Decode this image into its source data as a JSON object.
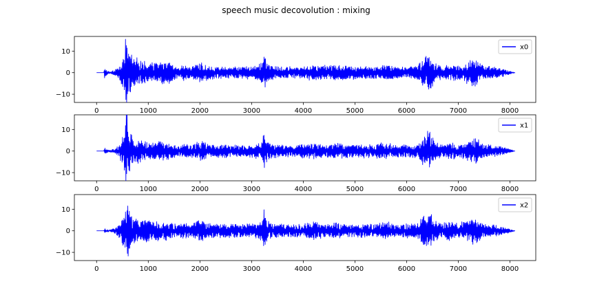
{
  "figure": {
    "title": "speech music decovolution : mixing",
    "line_color": "#0000ff",
    "legend_placement": "upper right"
  },
  "chart_data": [
    {
      "type": "line",
      "title": "",
      "xlabel": "",
      "ylabel": "",
      "xlim": [
        -430,
        8500
      ],
      "ylim": [
        -13.8,
        16.8
      ],
      "xticks": [
        0,
        1000,
        2000,
        3000,
        4000,
        5000,
        6000,
        7000,
        8000
      ],
      "yticks": [
        -10,
        0,
        10
      ],
      "xtick_labels": [
        "0",
        "1000",
        "2000",
        "3000",
        "4000",
        "5000",
        "6000",
        "7000",
        "8000"
      ],
      "ytick_labels": [
        "−10",
        "0",
        "10"
      ],
      "grid": false,
      "legend": "upper right",
      "series": [
        {
          "name": "x0",
          "color": "#0000ff",
          "x_range": [
            0,
            8100
          ],
          "envelope": [
            [
              0,
              0
            ],
            [
              140,
              0
            ],
            [
              150,
              2.5
            ],
            [
              200,
              1.0
            ],
            [
              260,
              0.4
            ],
            [
              380,
              1.5
            ],
            [
              460,
              4
            ],
            [
              520,
              7
            ],
            [
              560,
              15.5
            ],
            [
              600,
              11
            ],
            [
              700,
              7
            ],
            [
              850,
              5.5
            ],
            [
              1000,
              4
            ],
            [
              1200,
              4.5
            ],
            [
              1400,
              5
            ],
            [
              1500,
              3
            ],
            [
              1600,
              2
            ],
            [
              1700,
              4
            ],
            [
              1800,
              2.5
            ],
            [
              2000,
              4.5
            ],
            [
              2200,
              3
            ],
            [
              2500,
              2.5
            ],
            [
              2800,
              2.5
            ],
            [
              3050,
              3
            ],
            [
              3200,
              4.5
            ],
            [
              3250,
              10
            ],
            [
              3300,
              4
            ],
            [
              3400,
              3
            ],
            [
              3600,
              2.5
            ],
            [
              3800,
              2.5
            ],
            [
              4000,
              2.5
            ],
            [
              4200,
              3.5
            ],
            [
              4400,
              3
            ],
            [
              4600,
              3.5
            ],
            [
              4800,
              3
            ],
            [
              5000,
              3
            ],
            [
              5200,
              3
            ],
            [
              5400,
              2.5
            ],
            [
              5600,
              3.5
            ],
            [
              5800,
              2.5
            ],
            [
              6000,
              2.5
            ],
            [
              6200,
              3
            ],
            [
              6400,
              8.5
            ],
            [
              6470,
              9
            ],
            [
              6550,
              4
            ],
            [
              6700,
              3
            ],
            [
              6900,
              3.5
            ],
            [
              7000,
              3
            ],
            [
              7300,
              6
            ],
            [
              7400,
              5.5
            ],
            [
              7500,
              3
            ],
            [
              7700,
              2.5
            ],
            [
              7900,
              1.5
            ],
            [
              8050,
              0.4
            ],
            [
              8100,
              0
            ]
          ],
          "extremes": {
            "max": 15.5,
            "min": -12.5
          }
        },
        {
          "name": "x1",
          "color": "#0000ff",
          "x_range": [
            0,
            8100
          ],
          "envelope": [
            [
              0,
              0
            ],
            [
              140,
              0
            ],
            [
              150,
              1.5
            ],
            [
              200,
              0.8
            ],
            [
              260,
              0.4
            ],
            [
              380,
              1.5
            ],
            [
              460,
              4
            ],
            [
              520,
              8
            ],
            [
              580,
              17.5
            ],
            [
              620,
              12
            ],
            [
              700,
              6
            ],
            [
              850,
              5
            ],
            [
              1000,
              4
            ],
            [
              1200,
              4
            ],
            [
              1400,
              3.5
            ],
            [
              1500,
              3
            ],
            [
              1600,
              2
            ],
            [
              1700,
              3.5
            ],
            [
              1800,
              2.5
            ],
            [
              2000,
              5
            ],
            [
              2200,
              3
            ],
            [
              2500,
              3
            ],
            [
              2800,
              2.5
            ],
            [
              3050,
              3
            ],
            [
              3200,
              4
            ],
            [
              3250,
              10
            ],
            [
              3300,
              4
            ],
            [
              3400,
              3
            ],
            [
              3600,
              3
            ],
            [
              3800,
              2.5
            ],
            [
              4000,
              3
            ],
            [
              4200,
              3.5
            ],
            [
              4400,
              3
            ],
            [
              4600,
              3.5
            ],
            [
              4800,
              3
            ],
            [
              5000,
              3
            ],
            [
              5200,
              3
            ],
            [
              5400,
              3
            ],
            [
              5600,
              4
            ],
            [
              5800,
              3
            ],
            [
              6000,
              2.5
            ],
            [
              6200,
              3
            ],
            [
              6400,
              8.5
            ],
            [
              6470,
              9
            ],
            [
              6550,
              4
            ],
            [
              6700,
              3
            ],
            [
              6900,
              3.5
            ],
            [
              7000,
              3
            ],
            [
              7300,
              5.5
            ],
            [
              7400,
              5
            ],
            [
              7500,
              3
            ],
            [
              7700,
              2.5
            ],
            [
              7900,
              1.5
            ],
            [
              8050,
              0.4
            ],
            [
              8100,
              0
            ]
          ],
          "extremes": {
            "max": 17.5,
            "min": -10.5
          }
        },
        {
          "name": "x2",
          "color": "#0000ff",
          "x_range": [
            0,
            8100
          ],
          "envelope": [
            [
              0,
              0
            ],
            [
              140,
              0
            ],
            [
              150,
              1.0
            ],
            [
              200,
              0.6
            ],
            [
              260,
              0.4
            ],
            [
              380,
              1.5
            ],
            [
              460,
              4
            ],
            [
              520,
              7
            ],
            [
              600,
              11.5
            ],
            [
              650,
              9
            ],
            [
              700,
              6
            ],
            [
              850,
              5
            ],
            [
              1000,
              4.5
            ],
            [
              1200,
              4.5
            ],
            [
              1400,
              4
            ],
            [
              1500,
              3
            ],
            [
              1600,
              2.5
            ],
            [
              1700,
              4
            ],
            [
              1800,
              2.5
            ],
            [
              2000,
              5
            ],
            [
              2200,
              3
            ],
            [
              2500,
              3
            ],
            [
              2800,
              3
            ],
            [
              3050,
              3
            ],
            [
              3200,
              4.5
            ],
            [
              3250,
              10
            ],
            [
              3300,
              4.5
            ],
            [
              3400,
              3
            ],
            [
              3600,
              3
            ],
            [
              3800,
              3
            ],
            [
              4000,
              3
            ],
            [
              4200,
              4
            ],
            [
              4400,
              3
            ],
            [
              4600,
              3.5
            ],
            [
              4800,
              3
            ],
            [
              5000,
              3
            ],
            [
              5200,
              3
            ],
            [
              5400,
              3
            ],
            [
              5600,
              4
            ],
            [
              5800,
              3
            ],
            [
              6000,
              3
            ],
            [
              6200,
              3.5
            ],
            [
              6400,
              8.5
            ],
            [
              6470,
              9
            ],
            [
              6550,
              4
            ],
            [
              6700,
              3.5
            ],
            [
              6900,
              4.5
            ],
            [
              7000,
              3
            ],
            [
              7300,
              6
            ],
            [
              7400,
              5
            ],
            [
              7500,
              3
            ],
            [
              7700,
              2.5
            ],
            [
              7900,
              1.5
            ],
            [
              8050,
              0.4
            ],
            [
              8100,
              0
            ]
          ],
          "extremes": {
            "max": 11.5,
            "min": -10.5
          }
        }
      ]
    }
  ]
}
